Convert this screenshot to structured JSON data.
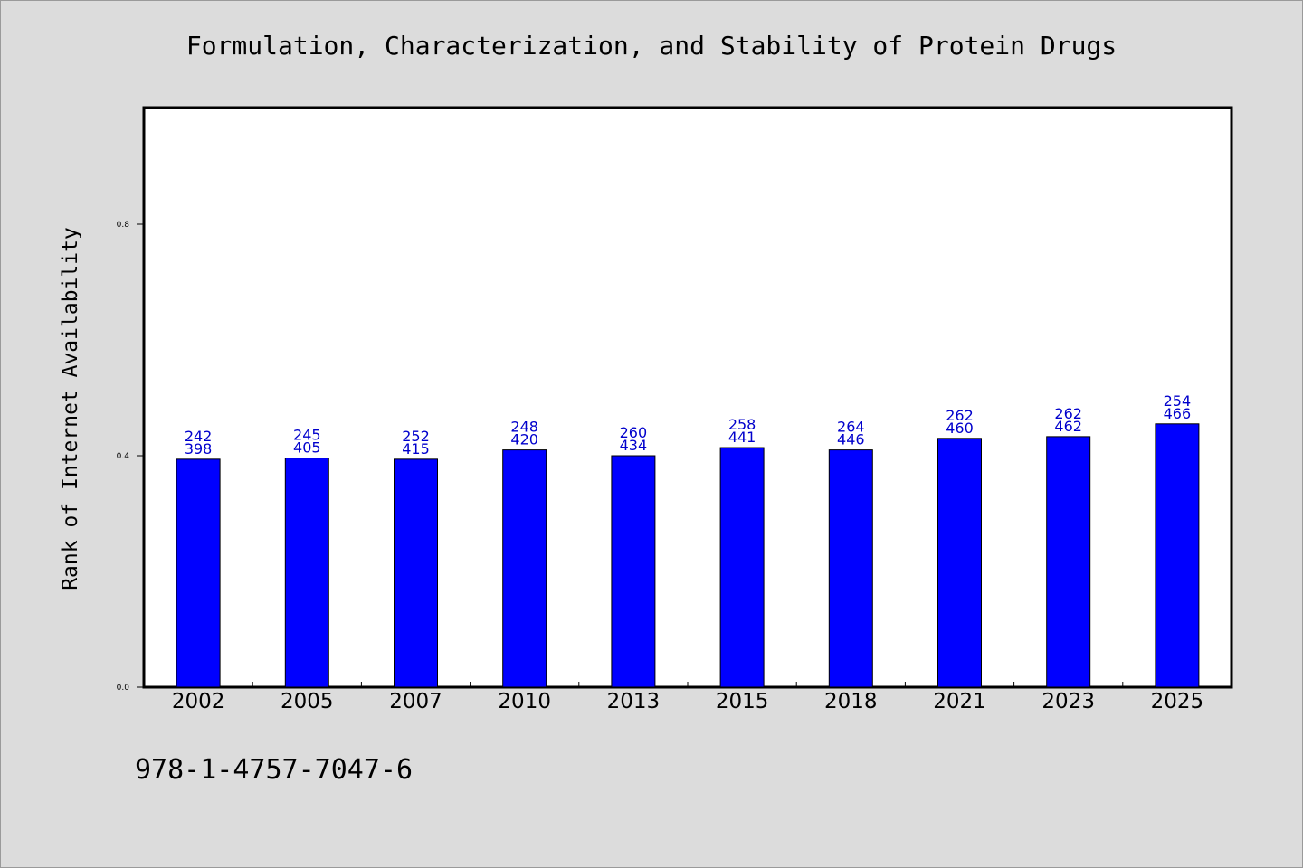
{
  "chart_data": {
    "type": "bar",
    "title": "Formulation, Characterization, and Stability of Protein Drugs",
    "xlabel": "",
    "ylabel": "Rank of Internet Availability",
    "ylim": [
      0,
      1.0
    ],
    "yticks": [
      0.0,
      0.4,
      0.8
    ],
    "ytick_labels": [
      "0.0",
      "0.4",
      "0.8"
    ],
    "grid": false,
    "legend": "none",
    "categories": [
      "2002",
      "2005",
      "2007",
      "2010",
      "2013",
      "2015",
      "2018",
      "2021",
      "2023",
      "2025"
    ],
    "values": [
      0.394,
      0.396,
      0.394,
      0.41,
      0.4,
      0.414,
      0.41,
      0.43,
      0.433,
      0.455
    ],
    "label_top": [
      "242",
      "245",
      "252",
      "248",
      "260",
      "258",
      "264",
      "262",
      "262",
      "254"
    ],
    "label_bottom": [
      "398",
      "405",
      "415",
      "420",
      "434",
      "441",
      "446",
      "460",
      "462",
      "466"
    ],
    "bar_color": "#0000ff",
    "label_color": "#0000cc"
  },
  "footer": {
    "isbn": "978-1-4757-7047-6"
  }
}
